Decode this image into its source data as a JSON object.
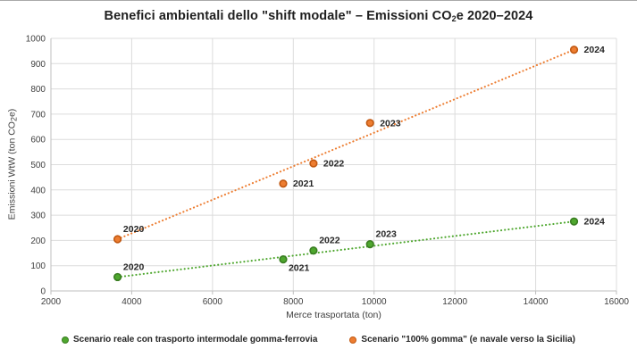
{
  "title": {
    "prefix": "Benefici ambientali dello \"shift modale\" – Emissioni CO",
    "sub": "2",
    "suffix": "e 2020–2024"
  },
  "axes": {
    "y": {
      "title_prefix": "Emissioni WtW (ton CO",
      "title_sub": "2",
      "title_suffix": "e)",
      "ticks": [
        0,
        100,
        200,
        300,
        400,
        500,
        600,
        700,
        800,
        900,
        1000
      ]
    },
    "x": {
      "title": "Merce trasportata (ton)",
      "ticks": [
        2000,
        4000,
        6000,
        8000,
        10000,
        12000,
        14000,
        16000
      ]
    }
  },
  "legend": [
    {
      "label": "Scenario reale con trasporto intermodale gomma-ferrovia"
    },
    {
      "label": "Scenario \"100% gomma\" (e navale verso la Sicilia)"
    }
  ],
  "colors": {
    "grid": "#dcdcdc",
    "axis": "#bfbfbf",
    "tick_text": "#404040",
    "data_label": "#262626",
    "green": "#4EA72E",
    "green_dark": "#3A7D22",
    "orange": "#ED7D31",
    "orange_dark": "#C15811"
  },
  "chart_data": {
    "type": "scatter",
    "title": "Benefici ambientali dello \"shift modale\" – Emissioni CO2e 2020–2024",
    "xlabel": "Merce trasportata (ton)",
    "ylabel": "Emissioni WtW (ton CO2e)",
    "xlim": [
      2000,
      16000
    ],
    "ylim": [
      0,
      1000
    ],
    "x_tick_step": 2000,
    "y_tick_step": 100,
    "grid": true,
    "legend_position": "bottom",
    "trendline": "dotted linear per series",
    "series": [
      {
        "name": "Scenario reale con trasporto intermodale gomma-ferrovia",
        "color": "#4EA72E",
        "stroke": "#3A7D22",
        "points": [
          {
            "year": "2020",
            "x": 3650,
            "y": 55,
            "label_pos": "above"
          },
          {
            "year": "2021",
            "x": 7750,
            "y": 125,
            "label_pos": "below-right"
          },
          {
            "year": "2022",
            "x": 8500,
            "y": 160,
            "label_pos": "above"
          },
          {
            "year": "2023",
            "x": 9900,
            "y": 185,
            "label_pos": "above"
          },
          {
            "year": "2024",
            "x": 14950,
            "y": 275,
            "label_pos": "right"
          }
        ]
      },
      {
        "name": "Scenario \"100% gomma\" (e navale verso la Sicilia)",
        "color": "#ED7D31",
        "stroke": "#C15811",
        "points": [
          {
            "year": "2020",
            "x": 3650,
            "y": 205,
            "label_pos": "above"
          },
          {
            "year": "2021",
            "x": 7750,
            "y": 425,
            "label_pos": "right"
          },
          {
            "year": "2022",
            "x": 8500,
            "y": 505,
            "label_pos": "right"
          },
          {
            "year": "2023",
            "x": 9900,
            "y": 665,
            "label_pos": "right"
          },
          {
            "year": "2024",
            "x": 14950,
            "y": 955,
            "label_pos": "right"
          }
        ]
      }
    ]
  }
}
